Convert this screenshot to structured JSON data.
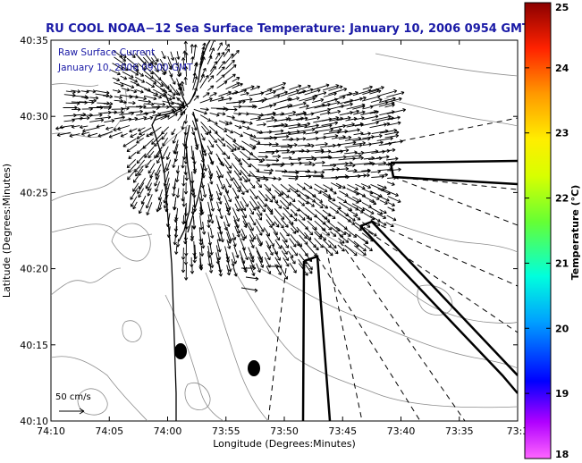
{
  "chart_data": {
    "type": "scatter",
    "title": "RU COOL  NOAA−12  Sea Surface Temperature:  January 10, 2006 0954 GMT",
    "xlabel": "Longitude (Degrees:Minutes)",
    "ylabel": "Latitude (Degrees:Minutes)",
    "x_ticks": [
      "74:10",
      "74:05",
      "74:00",
      "73:55",
      "73:50",
      "73:45",
      "73:40",
      "73:35",
      "73:3"
    ],
    "y_ticks": [
      "40:10",
      "40:15",
      "40:20",
      "40:25",
      "40:30",
      "40:35"
    ],
    "legend": {
      "line1": "Raw Surface Current",
      "line2": "January 10, 2006 09:00 GMT",
      "placement": "top-left"
    },
    "scale_label": "50 cm/s",
    "colorbar": {
      "label": "Temperature (°C)",
      "ticks": [
        "18",
        "19",
        "20",
        "21",
        "22",
        "23",
        "24",
        "25"
      ],
      "range": [
        18,
        25
      ],
      "colors": [
        "#ff00ff",
        "#0000ff",
        "#00bfff",
        "#00ff7f",
        "#7fff00",
        "#ffff00",
        "#ff8c00",
        "#ff0000",
        "#8b0000"
      ]
    },
    "grid": false,
    "land_color": "#000000",
    "vector_color": "#000000",
    "boundary_color": "#888888"
  }
}
